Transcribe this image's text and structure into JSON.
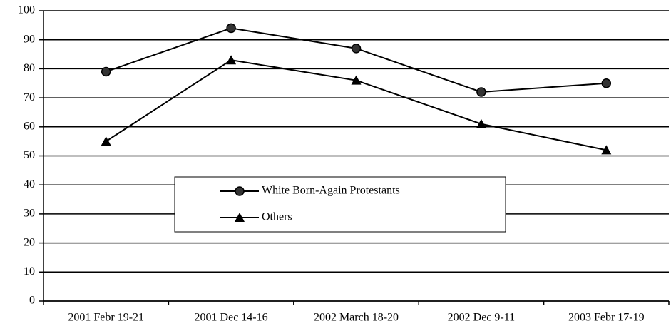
{
  "chart_data": {
    "type": "line",
    "categories": [
      "2001 Febr 19-21",
      "2001 Dec 14-16",
      "2002 March 18-20",
      "2002 Dec 9-11",
      "2003 Febr 17-19"
    ],
    "series": [
      {
        "name": "White Born-Again Protestants",
        "color": "#000000",
        "marker": "circle",
        "values": [
          79,
          94,
          87,
          72,
          75
        ]
      },
      {
        "name": "Others",
        "color": "#000000",
        "marker": "triangle",
        "values": [
          55,
          83,
          76,
          61,
          52
        ]
      }
    ],
    "ylim": [
      0,
      100
    ],
    "yticks": [
      0,
      10,
      20,
      30,
      40,
      50,
      60,
      70,
      80,
      90,
      100
    ],
    "grid": true,
    "legend": "center"
  }
}
